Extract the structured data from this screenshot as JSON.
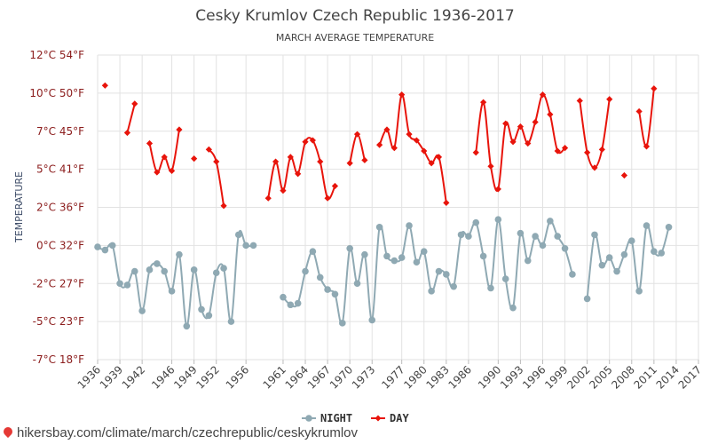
{
  "chart_data": {
    "type": "line",
    "title": "Cesky Krumlov Czech Republic 1936-2017",
    "subtitle": "MARCH AVERAGE TEMPERATURE",
    "ylabel": "TEMPERATURE",
    "ylim": [
      -7.5,
      12.5
    ],
    "y_ticks": [
      {
        "value": 12.5,
        "label": "12°C 54°F"
      },
      {
        "value": 10,
        "label": "10°C 50°F"
      },
      {
        "value": 7.5,
        "label": "7°C 45°F"
      },
      {
        "value": 5,
        "label": "5°C 41°F"
      },
      {
        "value": 2.5,
        "label": "2°C 36°F"
      },
      {
        "value": 0,
        "label": "0°C 32°F"
      },
      {
        "value": -2.5,
        "label": "-2°C 27°F"
      },
      {
        "value": -5,
        "label": "-5°C 23°F"
      },
      {
        "value": -7.5,
        "label": "-7°C 18°F"
      }
    ],
    "x_ticks": [
      1936,
      1939,
      1942,
      1946,
      1949,
      1952,
      1956,
      1961,
      1964,
      1967,
      1970,
      1973,
      1977,
      1980,
      1983,
      1986,
      1990,
      1993,
      1996,
      1999,
      2002,
      2005,
      2008,
      2011,
      2014,
      2017
    ],
    "xlim": [
      1936,
      2017
    ],
    "grid": true,
    "legend": "bottom",
    "series": [
      {
        "name": "NIGHT",
        "color": "#8fa9b3",
        "points": [
          [
            1936,
            -0.1
          ],
          [
            1937,
            -0.3
          ],
          [
            1938,
            0.0
          ],
          [
            1939,
            -2.5
          ],
          [
            1940,
            -2.6
          ],
          [
            1941,
            -1.7
          ],
          [
            1942,
            -4.3
          ],
          [
            1943,
            -1.6
          ],
          [
            1944,
            -1.2
          ],
          [
            1945,
            -1.7
          ],
          [
            1946,
            -3.0
          ],
          [
            1947,
            -0.6
          ],
          [
            1948,
            -5.3
          ],
          [
            1949,
            -1.6
          ],
          [
            1950,
            -4.2
          ],
          [
            1951,
            -4.6
          ],
          [
            1952,
            -1.8
          ],
          [
            1953,
            -1.5
          ],
          [
            1954,
            -5.0
          ],
          [
            1955,
            0.7
          ],
          [
            1956,
            0.0
          ],
          [
            1957,
            0.0
          ],
          [
            1961,
            -3.4
          ],
          [
            1962,
            -3.9
          ],
          [
            1963,
            -3.8
          ],
          [
            1964,
            -1.7
          ],
          [
            1965,
            -0.4
          ],
          [
            1966,
            -2.1
          ],
          [
            1967,
            -2.9
          ],
          [
            1968,
            -3.2
          ],
          [
            1969,
            -5.1
          ],
          [
            1970,
            -0.2
          ],
          [
            1971,
            -2.5
          ],
          [
            1972,
            -0.6
          ],
          [
            1973,
            -4.9
          ],
          [
            1974,
            1.2
          ],
          [
            1975,
            -0.7
          ],
          [
            1976,
            -1.0
          ],
          [
            1977,
            -0.8
          ],
          [
            1978,
            1.3
          ],
          [
            1979,
            -1.1
          ],
          [
            1980,
            -0.4
          ],
          [
            1981,
            -3.0
          ],
          [
            1982,
            -1.7
          ],
          [
            1983,
            -1.9
          ],
          [
            1984,
            -2.7
          ],
          [
            1985,
            0.7
          ],
          [
            1986,
            0.6
          ],
          [
            1987,
            1.5
          ],
          [
            1988,
            -0.7
          ],
          [
            1989,
            -2.8
          ],
          [
            1990,
            1.7
          ],
          [
            1991,
            -2.2
          ],
          [
            1992,
            -4.1
          ],
          [
            1993,
            0.8
          ],
          [
            1994,
            -1.0
          ],
          [
            1995,
            0.6
          ],
          [
            1996,
            0.0
          ],
          [
            1997,
            1.6
          ],
          [
            1998,
            0.6
          ],
          [
            1999,
            -0.2
          ],
          [
            2000,
            -1.9
          ],
          [
            2002,
            -3.5
          ],
          [
            2003,
            0.7
          ],
          [
            2004,
            -1.3
          ],
          [
            2005,
            -0.8
          ],
          [
            2006,
            -1.7
          ],
          [
            2007,
            -0.6
          ],
          [
            2008,
            0.3
          ],
          [
            2009,
            -3.0
          ],
          [
            2010,
            1.3
          ],
          [
            2011,
            -0.4
          ],
          [
            2012,
            -0.5
          ],
          [
            2013,
            1.2
          ]
        ]
      },
      {
        "name": "DAY",
        "color": "#e8140b",
        "points": [
          [
            1937,
            10.5
          ],
          [
            1940,
            7.4
          ],
          [
            1941,
            9.3
          ],
          [
            1943,
            6.7
          ],
          [
            1944,
            4.8
          ],
          [
            1945,
            5.8
          ],
          [
            1946,
            4.9
          ],
          [
            1947,
            7.6
          ],
          [
            1949,
            5.7
          ],
          [
            1951,
            6.3
          ],
          [
            1952,
            5.5
          ],
          [
            1953,
            2.6
          ],
          [
            1959,
            3.1
          ],
          [
            1960,
            5.5
          ],
          [
            1961,
            3.6
          ],
          [
            1962,
            5.8
          ],
          [
            1963,
            4.7
          ],
          [
            1964,
            6.8
          ],
          [
            1965,
            6.9
          ],
          [
            1966,
            5.5
          ],
          [
            1967,
            3.1
          ],
          [
            1968,
            3.9
          ],
          [
            1970,
            5.4
          ],
          [
            1971,
            7.3
          ],
          [
            1972,
            5.6
          ],
          [
            1974,
            6.6
          ],
          [
            1975,
            7.6
          ],
          [
            1976,
            6.4
          ],
          [
            1977,
            9.9
          ],
          [
            1978,
            7.3
          ],
          [
            1979,
            6.9
          ],
          [
            1980,
            6.2
          ],
          [
            1981,
            5.4
          ],
          [
            1982,
            5.8
          ],
          [
            1983,
            2.8
          ],
          [
            1987,
            6.1
          ],
          [
            1988,
            9.4
          ],
          [
            1989,
            5.2
          ],
          [
            1990,
            3.7
          ],
          [
            1991,
            8.0
          ],
          [
            1992,
            6.8
          ],
          [
            1993,
            7.8
          ],
          [
            1994,
            6.7
          ],
          [
            1995,
            8.1
          ],
          [
            1996,
            9.9
          ],
          [
            1997,
            8.6
          ],
          [
            1998,
            6.2
          ],
          [
            1999,
            6.4
          ],
          [
            2001,
            9.5
          ],
          [
            2002,
            6.1
          ],
          [
            2003,
            5.1
          ],
          [
            2004,
            6.3
          ],
          [
            2005,
            9.6
          ],
          [
            2007,
            4.6
          ],
          [
            2009,
            8.8
          ],
          [
            2010,
            6.5
          ],
          [
            2011,
            10.3
          ]
        ]
      }
    ]
  },
  "watermark": "hikersbay.com/climate/march/czechrepublic/ceskykrumlov"
}
